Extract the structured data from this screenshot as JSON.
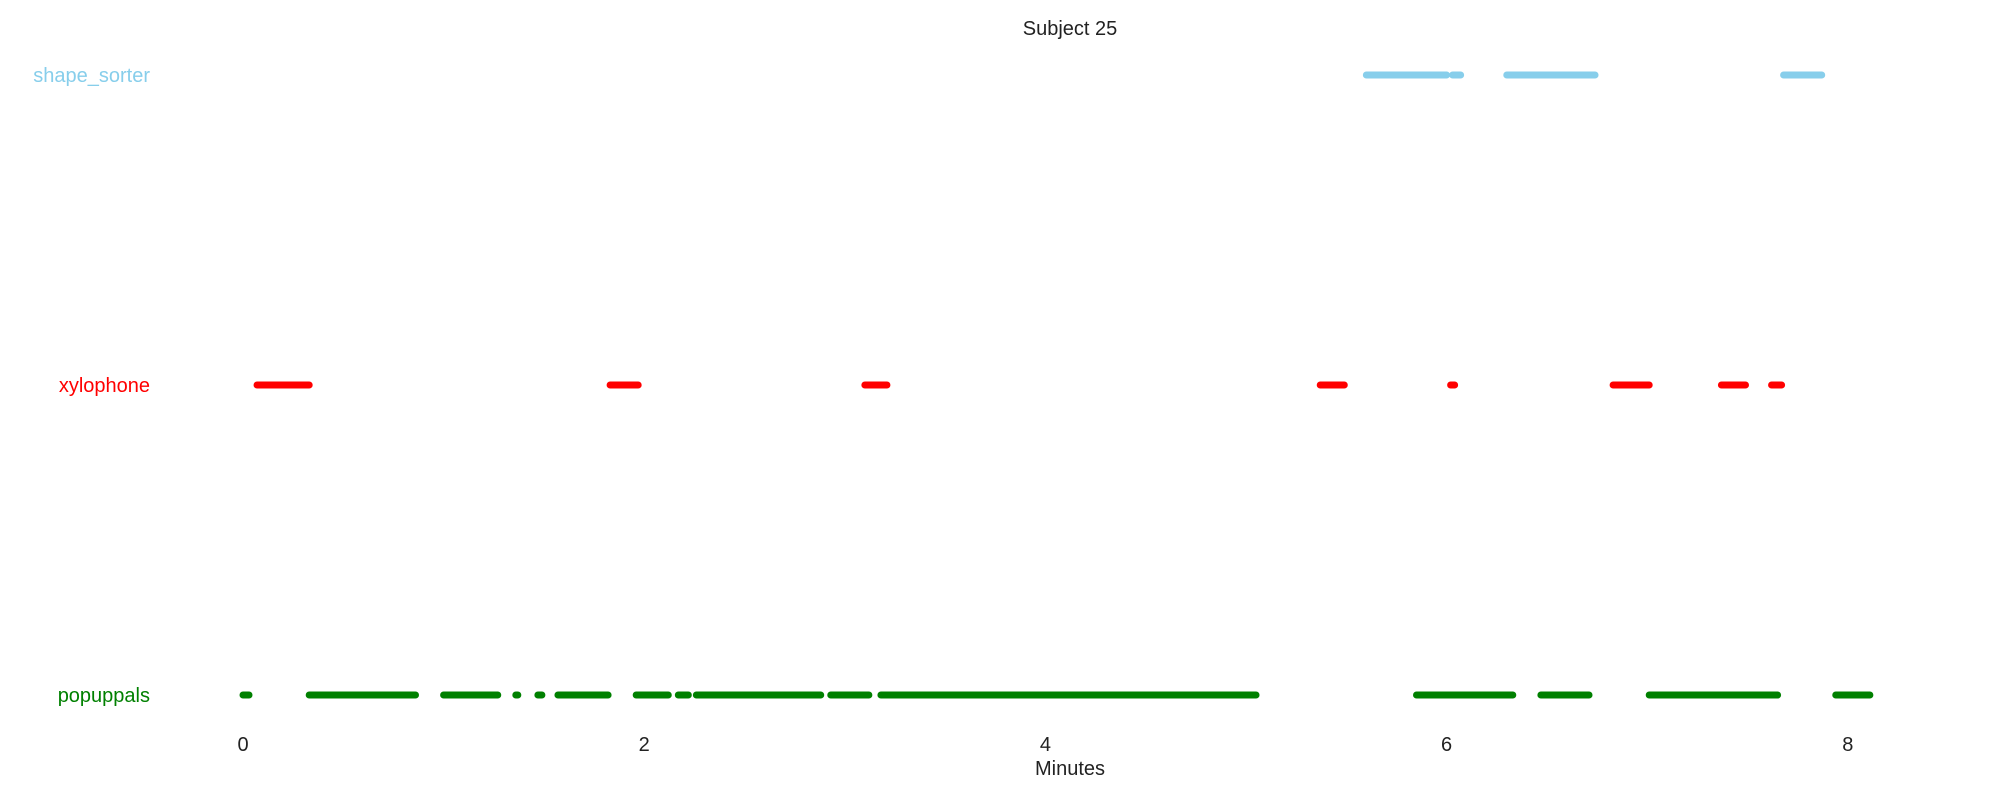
{
  "chart_data": {
    "type": "timeline",
    "title": "Subject 25",
    "xlabel": "Minutes",
    "ylabel": "",
    "xlim": [
      -0.1,
      8.9
    ],
    "xticks": [
      0,
      2,
      4,
      6,
      8
    ],
    "grid": false,
    "legend": "none",
    "series": [
      {
        "name": "shape_sorter",
        "color": "#87CEEB",
        "segments": [
          [
            5.6,
            6.0
          ],
          [
            6.03,
            6.07
          ],
          [
            6.3,
            6.74
          ],
          [
            7.68,
            7.87
          ]
        ]
      },
      {
        "name": "xylophone",
        "color": "#FF0000",
        "segments": [
          [
            0.07,
            0.33
          ],
          [
            1.83,
            1.97
          ],
          [
            3.1,
            3.21
          ],
          [
            5.37,
            5.49
          ],
          [
            6.02,
            6.04
          ],
          [
            6.83,
            7.01
          ],
          [
            7.37,
            7.49
          ],
          [
            7.62,
            7.67
          ]
        ]
      },
      {
        "name": "popuppals",
        "color": "#008000",
        "segments": [
          [
            0.0,
            0.03
          ],
          [
            0.33,
            0.86
          ],
          [
            1.0,
            1.27
          ],
          [
            1.36,
            1.37
          ],
          [
            1.47,
            1.49
          ],
          [
            1.57,
            1.82
          ],
          [
            1.96,
            2.12
          ],
          [
            2.17,
            2.22
          ],
          [
            2.26,
            2.88
          ],
          [
            2.93,
            3.12
          ],
          [
            3.18,
            5.05
          ],
          [
            5.85,
            6.33
          ],
          [
            6.47,
            6.71
          ],
          [
            7.01,
            7.65
          ],
          [
            7.94,
            8.11
          ]
        ]
      }
    ]
  }
}
